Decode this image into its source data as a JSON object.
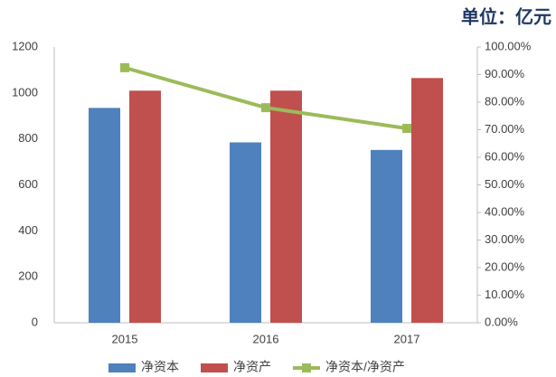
{
  "chart_data": {
    "type": "bar",
    "title": "单位：亿元",
    "categories": [
      "2015",
      "2016",
      "2017"
    ],
    "series": [
      {
        "name": "净资本",
        "color": "#4f81bd",
        "values": [
          935,
          785,
          752
        ]
      },
      {
        "name": "净资产",
        "color": "#c0504d",
        "values": [
          1010,
          1010,
          1065
        ]
      },
      {
        "name": "净资本/净资产",
        "color": "#9bbb59",
        "values": [
          92.5,
          78,
          70.5
        ],
        "axis": "y2"
      }
    ],
    "ylim": [
      0,
      1200
    ],
    "yticks": [
      0,
      200,
      400,
      600,
      800,
      1000,
      1200
    ],
    "y2lim": [
      0,
      100
    ],
    "y2ticks": [
      {
        "value": 0,
        "label": "0.00%"
      },
      {
        "value": 10,
        "label": "10.00%"
      },
      {
        "value": 20,
        "label": "20.00%"
      },
      {
        "value": 30,
        "label": "30.00%"
      },
      {
        "value": 40,
        "label": "40.00%"
      },
      {
        "value": 50,
        "label": "50.00%"
      },
      {
        "value": 60,
        "label": "60.00%"
      },
      {
        "value": 70,
        "label": "70.00%"
      },
      {
        "value": 80,
        "label": "80.00%"
      },
      {
        "value": 90,
        "label": "90.00%"
      },
      {
        "value": 100,
        "label": "100.00%"
      }
    ],
    "legend": "bottom"
  }
}
